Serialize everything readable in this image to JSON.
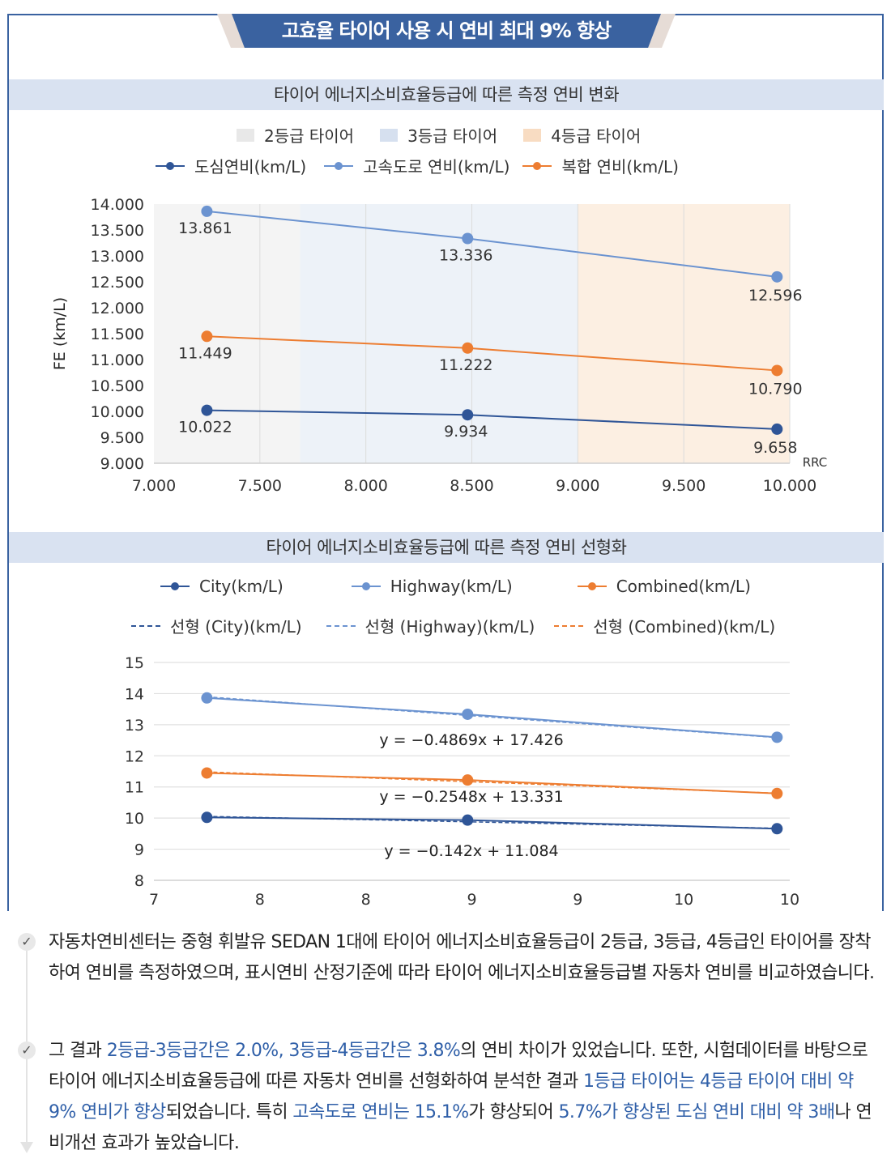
{
  "banner": {
    "title": "고효율 타이어 사용 시 연비 최대 9% 향상"
  },
  "colors": {
    "city": "#2f5597",
    "highway": "#6b93d0",
    "combined": "#ed7d31",
    "grade2": "#f4f4f4",
    "grade3": "#edf2f8",
    "grade4": "#fcefe2",
    "accent": "#3a62a0",
    "highlight": "#2f5fa8"
  },
  "chart_data": [
    {
      "type": "line",
      "title": "타이어 에너지소비효율등급에 따른 측정 연비 변화",
      "ylabel": "FE (km/L)",
      "xlabel": "RRC",
      "xlim": [
        7.0,
        10.0
      ],
      "ylim": [
        9.0,
        14.0
      ],
      "x_ticks": [
        "7.000",
        "7.500",
        "8.000",
        "8.500",
        "9.000",
        "9.500",
        "10.000"
      ],
      "y_ticks": [
        "9.000",
        "9.500",
        "10.000",
        "10.500",
        "11.000",
        "11.500",
        "12.000",
        "12.500",
        "13.000",
        "13.500",
        "14.000"
      ],
      "grid": "vertical",
      "legend": "top",
      "bands": [
        {
          "name": "2등급 타이어",
          "from": 7.0,
          "to": 7.69
        },
        {
          "name": "3등급 타이어",
          "from": 7.69,
          "to": 9.0
        },
        {
          "name": "4등급 타이어",
          "from": 9.0,
          "to": 10.0
        }
      ],
      "x": [
        7.25,
        8.48,
        9.94
      ],
      "series": [
        {
          "name": "도심연비(km/L)",
          "key": "city",
          "values": [
            10.022,
            9.934,
            9.658
          ],
          "labels": [
            "10.022",
            "9.934",
            "9.658"
          ]
        },
        {
          "name": "고속도로 연비(km/L)",
          "key": "highway",
          "values": [
            13.861,
            13.336,
            12.596
          ],
          "labels": [
            "13.861",
            "13.336",
            "12.596"
          ]
        },
        {
          "name": "복합 연비(km/L)",
          "key": "combined",
          "values": [
            11.449,
            11.222,
            10.79
          ],
          "labels": [
            "11.449",
            "11.222",
            "10.790"
          ]
        }
      ]
    },
    {
      "type": "line",
      "title": "타이어 에너지소비효율등급에 따른 측정 연비 선형화",
      "xlim": [
        7.0,
        10.0
      ],
      "ylim": [
        8,
        15
      ],
      "x_ticks": [
        "7",
        "8",
        "8",
        "9",
        "9",
        "10",
        "10"
      ],
      "y_ticks": [
        "8",
        "9",
        "10",
        "11",
        "12",
        "13",
        "14",
        "15"
      ],
      "grid": "horizontal",
      "legend": "top",
      "x": [
        7.25,
        8.48,
        9.94
      ],
      "series": [
        {
          "name": "City(km/L)",
          "key": "city",
          "values": [
            10.022,
            9.934,
            9.658
          ]
        },
        {
          "name": "Highway(km/L)",
          "key": "highway",
          "values": [
            13.861,
            13.336,
            12.596
          ]
        },
        {
          "name": "Combined(km/L)",
          "key": "combined",
          "values": [
            11.449,
            11.222,
            10.79
          ]
        }
      ],
      "trendlines": [
        {
          "name": "선형 (City)(km/L)",
          "key": "city",
          "slope": -0.142,
          "intercept": 11.084,
          "equation": "y = −0.142x + 11.084"
        },
        {
          "name": "선형 (Highway)(km/L)",
          "key": "highway",
          "slope": -0.4869,
          "intercept": 17.426,
          "equation": "y = −0.4869x + 17.426"
        },
        {
          "name": "선형 (Combined)(km/L)",
          "key": "combined",
          "slope": -0.2548,
          "intercept": 13.331,
          "equation": "y = −0.2548x + 13.331"
        }
      ]
    }
  ],
  "notes": {
    "p1": "자동차연비센터는 중형 휘발유 SEDAN 1대에 타이어 에너지소비효율등급이 2등급, 3등급, 4등급인 타이어를 장착하여 연비를 측정하였으며, 표시연비 산정기준에 따라 타이어 에너지소비효율등급별 자동차 연비를 비교하였습니다.",
    "p2": [
      {
        "t": "그 결과 ",
        "hl": false
      },
      {
        "t": "2등급-3등급간은 2.0%, 3등급-4등급간은 3.8%",
        "hl": true
      },
      {
        "t": "의 연비 차이가 있었습니다. 또한, 시험데이터를 바탕으로 타이어 에너지소비효율등급에 따른 자동차 연비를 선형화하여 분석한 결과 ",
        "hl": false
      },
      {
        "t": "1등급 타이어는 4등급 타이어 대비 약 9% 연비가 향상",
        "hl": true
      },
      {
        "t": "되었습니다. 특히 ",
        "hl": false
      },
      {
        "t": "고속도로 연비는 15.1%",
        "hl": true
      },
      {
        "t": "가 향상되어 ",
        "hl": false
      },
      {
        "t": "5.7%가 향상된 도심 연비 대비 약 3배",
        "hl": true
      },
      {
        "t": "나 연비개선 효과가 높았습니다.",
        "hl": false
      }
    ]
  }
}
